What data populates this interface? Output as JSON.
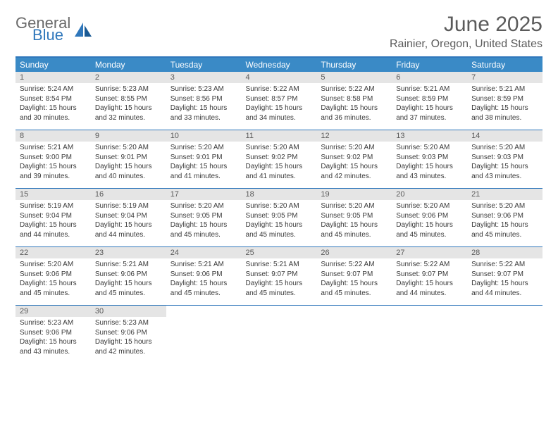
{
  "logo": {
    "part1": "General",
    "part2": "Blue"
  },
  "title": "June 2025",
  "location": "Rainier, Oregon, United States",
  "colors": {
    "header_bg": "#3a8ac6",
    "border": "#2f77bb",
    "daynum_bg": "#e5e5e5",
    "text_muted": "#5b5b5b",
    "text_body": "#3a3a3a",
    "logo_gray": "#6a6a6a",
    "logo_blue": "#2f77bb",
    "background": "#ffffff"
  },
  "typography": {
    "title_fontsize": 30,
    "location_fontsize": 16,
    "dow_fontsize": 12,
    "daynum_fontsize": 11,
    "detail_fontsize": 10
  },
  "dow": [
    "Sunday",
    "Monday",
    "Tuesday",
    "Wednesday",
    "Thursday",
    "Friday",
    "Saturday"
  ],
  "weeks": [
    [
      {
        "n": "1",
        "sr": "Sunrise: 5:24 AM",
        "ss": "Sunset: 8:54 PM",
        "d1": "Daylight: 15 hours",
        "d2": "and 30 minutes."
      },
      {
        "n": "2",
        "sr": "Sunrise: 5:23 AM",
        "ss": "Sunset: 8:55 PM",
        "d1": "Daylight: 15 hours",
        "d2": "and 32 minutes."
      },
      {
        "n": "3",
        "sr": "Sunrise: 5:23 AM",
        "ss": "Sunset: 8:56 PM",
        "d1": "Daylight: 15 hours",
        "d2": "and 33 minutes."
      },
      {
        "n": "4",
        "sr": "Sunrise: 5:22 AM",
        "ss": "Sunset: 8:57 PM",
        "d1": "Daylight: 15 hours",
        "d2": "and 34 minutes."
      },
      {
        "n": "5",
        "sr": "Sunrise: 5:22 AM",
        "ss": "Sunset: 8:58 PM",
        "d1": "Daylight: 15 hours",
        "d2": "and 36 minutes."
      },
      {
        "n": "6",
        "sr": "Sunrise: 5:21 AM",
        "ss": "Sunset: 8:59 PM",
        "d1": "Daylight: 15 hours",
        "d2": "and 37 minutes."
      },
      {
        "n": "7",
        "sr": "Sunrise: 5:21 AM",
        "ss": "Sunset: 8:59 PM",
        "d1": "Daylight: 15 hours",
        "d2": "and 38 minutes."
      }
    ],
    [
      {
        "n": "8",
        "sr": "Sunrise: 5:21 AM",
        "ss": "Sunset: 9:00 PM",
        "d1": "Daylight: 15 hours",
        "d2": "and 39 minutes."
      },
      {
        "n": "9",
        "sr": "Sunrise: 5:20 AM",
        "ss": "Sunset: 9:01 PM",
        "d1": "Daylight: 15 hours",
        "d2": "and 40 minutes."
      },
      {
        "n": "10",
        "sr": "Sunrise: 5:20 AM",
        "ss": "Sunset: 9:01 PM",
        "d1": "Daylight: 15 hours",
        "d2": "and 41 minutes."
      },
      {
        "n": "11",
        "sr": "Sunrise: 5:20 AM",
        "ss": "Sunset: 9:02 PM",
        "d1": "Daylight: 15 hours",
        "d2": "and 41 minutes."
      },
      {
        "n": "12",
        "sr": "Sunrise: 5:20 AM",
        "ss": "Sunset: 9:02 PM",
        "d1": "Daylight: 15 hours",
        "d2": "and 42 minutes."
      },
      {
        "n": "13",
        "sr": "Sunrise: 5:20 AM",
        "ss": "Sunset: 9:03 PM",
        "d1": "Daylight: 15 hours",
        "d2": "and 43 minutes."
      },
      {
        "n": "14",
        "sr": "Sunrise: 5:20 AM",
        "ss": "Sunset: 9:03 PM",
        "d1": "Daylight: 15 hours",
        "d2": "and 43 minutes."
      }
    ],
    [
      {
        "n": "15",
        "sr": "Sunrise: 5:19 AM",
        "ss": "Sunset: 9:04 PM",
        "d1": "Daylight: 15 hours",
        "d2": "and 44 minutes."
      },
      {
        "n": "16",
        "sr": "Sunrise: 5:19 AM",
        "ss": "Sunset: 9:04 PM",
        "d1": "Daylight: 15 hours",
        "d2": "and 44 minutes."
      },
      {
        "n": "17",
        "sr": "Sunrise: 5:20 AM",
        "ss": "Sunset: 9:05 PM",
        "d1": "Daylight: 15 hours",
        "d2": "and 45 minutes."
      },
      {
        "n": "18",
        "sr": "Sunrise: 5:20 AM",
        "ss": "Sunset: 9:05 PM",
        "d1": "Daylight: 15 hours",
        "d2": "and 45 minutes."
      },
      {
        "n": "19",
        "sr": "Sunrise: 5:20 AM",
        "ss": "Sunset: 9:05 PM",
        "d1": "Daylight: 15 hours",
        "d2": "and 45 minutes."
      },
      {
        "n": "20",
        "sr": "Sunrise: 5:20 AM",
        "ss": "Sunset: 9:06 PM",
        "d1": "Daylight: 15 hours",
        "d2": "and 45 minutes."
      },
      {
        "n": "21",
        "sr": "Sunrise: 5:20 AM",
        "ss": "Sunset: 9:06 PM",
        "d1": "Daylight: 15 hours",
        "d2": "and 45 minutes."
      }
    ],
    [
      {
        "n": "22",
        "sr": "Sunrise: 5:20 AM",
        "ss": "Sunset: 9:06 PM",
        "d1": "Daylight: 15 hours",
        "d2": "and 45 minutes."
      },
      {
        "n": "23",
        "sr": "Sunrise: 5:21 AM",
        "ss": "Sunset: 9:06 PM",
        "d1": "Daylight: 15 hours",
        "d2": "and 45 minutes."
      },
      {
        "n": "24",
        "sr": "Sunrise: 5:21 AM",
        "ss": "Sunset: 9:06 PM",
        "d1": "Daylight: 15 hours",
        "d2": "and 45 minutes."
      },
      {
        "n": "25",
        "sr": "Sunrise: 5:21 AM",
        "ss": "Sunset: 9:07 PM",
        "d1": "Daylight: 15 hours",
        "d2": "and 45 minutes."
      },
      {
        "n": "26",
        "sr": "Sunrise: 5:22 AM",
        "ss": "Sunset: 9:07 PM",
        "d1": "Daylight: 15 hours",
        "d2": "and 45 minutes."
      },
      {
        "n": "27",
        "sr": "Sunrise: 5:22 AM",
        "ss": "Sunset: 9:07 PM",
        "d1": "Daylight: 15 hours",
        "d2": "and 44 minutes."
      },
      {
        "n": "28",
        "sr": "Sunrise: 5:22 AM",
        "ss": "Sunset: 9:07 PM",
        "d1": "Daylight: 15 hours",
        "d2": "and 44 minutes."
      }
    ],
    [
      {
        "n": "29",
        "sr": "Sunrise: 5:23 AM",
        "ss": "Sunset: 9:06 PM",
        "d1": "Daylight: 15 hours",
        "d2": "and 43 minutes."
      },
      {
        "n": "30",
        "sr": "Sunrise: 5:23 AM",
        "ss": "Sunset: 9:06 PM",
        "d1": "Daylight: 15 hours",
        "d2": "and 42 minutes."
      },
      null,
      null,
      null,
      null,
      null
    ]
  ]
}
